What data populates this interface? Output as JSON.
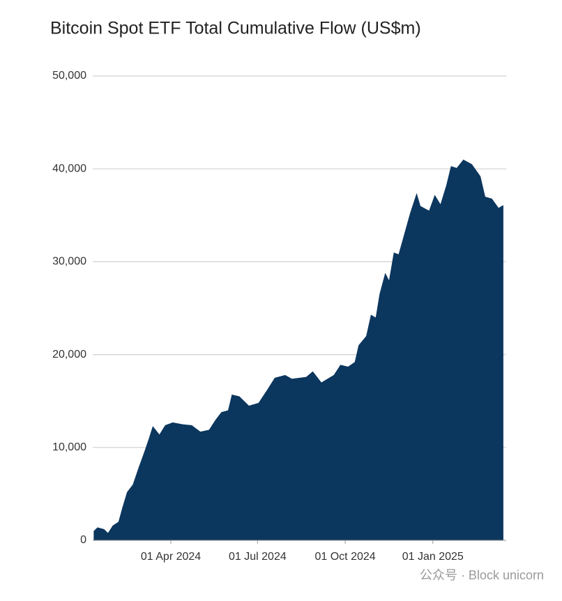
{
  "chart_data": {
    "type": "area",
    "title": "Bitcoin Spot ETF Total Cumulative Flow (US$m)",
    "x": [
      "2024-01-11",
      "2024-01-15",
      "2024-01-22",
      "2024-01-26",
      "2024-01-31",
      "2024-02-06",
      "2024-02-10",
      "2024-02-15",
      "2024-02-21",
      "2024-02-27",
      "2024-03-04",
      "2024-03-09",
      "2024-03-13",
      "2024-03-20",
      "2024-03-26",
      "2024-04-03",
      "2024-04-13",
      "2024-04-23",
      "2024-05-02",
      "2024-05-11",
      "2024-05-18",
      "2024-05-24",
      "2024-05-31",
      "2024-06-04",
      "2024-06-12",
      "2024-06-22",
      "2024-07-02",
      "2024-07-11",
      "2024-07-19",
      "2024-07-30",
      "2024-08-06",
      "2024-08-21",
      "2024-08-28",
      "2024-09-06",
      "2024-09-19",
      "2024-09-26",
      "2024-10-04",
      "2024-10-11",
      "2024-10-15",
      "2024-10-23",
      "2024-10-28",
      "2024-11-02",
      "2024-11-06",
      "2024-11-12",
      "2024-11-16",
      "2024-11-21",
      "2024-11-26",
      "2024-12-02",
      "2024-12-08",
      "2024-12-15",
      "2024-12-19",
      "2024-12-28",
      "2025-01-03",
      "2025-01-09",
      "2025-01-15",
      "2025-01-20",
      "2025-01-26",
      "2025-02-02",
      "2025-02-11",
      "2025-02-20",
      "2025-02-25",
      "2025-03-04",
      "2025-03-11",
      "2025-03-16"
    ],
    "values": [
      1000,
      1400,
      1200,
      800,
      1600,
      2000,
      3500,
      5200,
      6000,
      7800,
      9500,
      11000,
      12300,
      11400,
      12400,
      12700,
      12500,
      12400,
      11700,
      11900,
      13000,
      13800,
      14000,
      15700,
      15500,
      14500,
      14800,
      16200,
      17500,
      17800,
      17400,
      17600,
      18200,
      17000,
      17800,
      18900,
      18700,
      19200,
      21000,
      22000,
      24300,
      24000,
      26500,
      28800,
      28000,
      31000,
      30800,
      33000,
      35200,
      37400,
      36000,
      35500,
      37200,
      36200,
      38200,
      40300,
      40100,
      41000,
      40500,
      39200,
      37000,
      36800,
      35800,
      36100
    ],
    "color": "#0b365e",
    "xlim": [
      "2024-01-10",
      "2025-03-19"
    ],
    "xticks": [
      {
        "value": "2024-04-01",
        "label": "01 Apr 2024"
      },
      {
        "value": "2024-07-01",
        "label": "01 Jul 2024"
      },
      {
        "value": "2024-10-01",
        "label": "01 Oct 2024"
      },
      {
        "value": "2025-01-01",
        "label": "01 Jan 2025"
      }
    ],
    "ylim": [
      0,
      50000
    ],
    "yticks": [
      0,
      {
        "value": 10000,
        "label": "10,000"
      },
      {
        "value": 20000,
        "label": "20,000"
      },
      {
        "value": 30000,
        "label": "30,000"
      },
      {
        "value": 40000,
        "label": "40,000"
      },
      {
        "value": 50000,
        "label": "50,000"
      }
    ],
    "grid": true
  },
  "watermark": "公众号 · Block unicorn"
}
